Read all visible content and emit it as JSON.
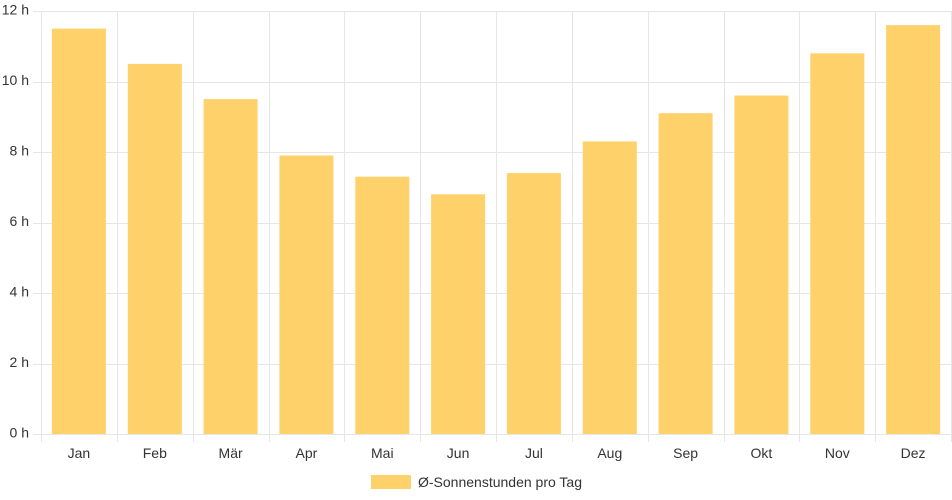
{
  "chart_data": {
    "type": "bar",
    "categories": [
      "Jan",
      "Feb",
      "Mär",
      "Apr",
      "Mai",
      "Jun",
      "Jul",
      "Aug",
      "Sep",
      "Okt",
      "Nov",
      "Dez"
    ],
    "series": [
      {
        "name": "Ø-Sonnenstunden pro Tag",
        "values": [
          11.5,
          10.5,
          9.5,
          7.9,
          7.3,
          6.8,
          7.4,
          8.3,
          9.1,
          9.6,
          10.8,
          11.6
        ],
        "color": "#fed16b"
      }
    ],
    "ylim": [
      0,
      12
    ],
    "y_ticks": [
      0,
      2,
      4,
      6,
      8,
      10,
      12
    ],
    "y_tick_suffix": " h",
    "grid": true,
    "legend_position": "bottom",
    "grid_color": "#e6e6e6"
  }
}
